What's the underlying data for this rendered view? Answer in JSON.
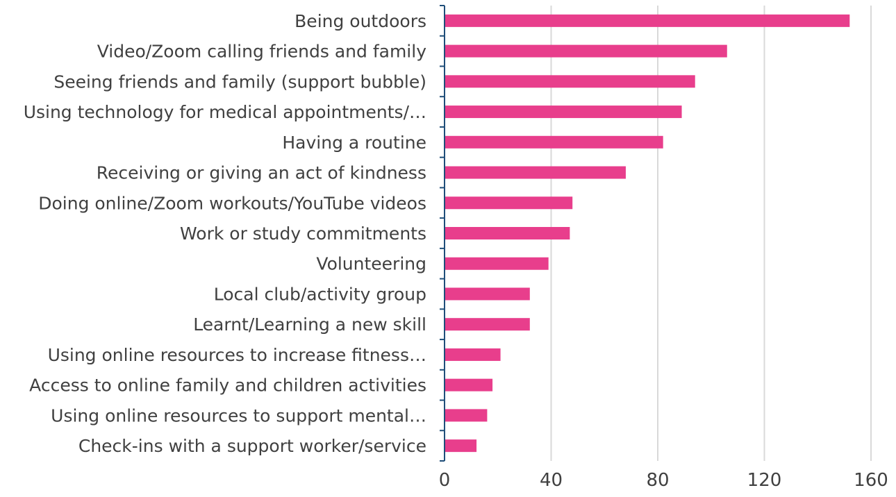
{
  "chart_data": {
    "type": "bar",
    "orientation": "horizontal",
    "title": "",
    "xlabel": "",
    "ylabel": "",
    "xlim": [
      0,
      160
    ],
    "x_ticks": [
      0,
      40,
      80,
      120,
      160
    ],
    "grid": "vertical",
    "legend": "none",
    "categories": [
      "Being outdoors",
      "Video/Zoom calling friends and family",
      "Seeing friends and family (support bubble)",
      "Using technology for medical appointments/…",
      "Having a routine",
      "Receiving or giving an act of kindness",
      "Doing online/Zoom workouts/YouTube videos",
      "Work or study commitments",
      "Volunteering",
      "Local club/activity group",
      "Learnt/Learning a new skill",
      "Using online resources to increase fitness…",
      "Access to online family and children activities",
      "Using online resources to support mental…",
      "Check-ins with a support worker/service"
    ],
    "values": [
      152,
      106,
      94,
      89,
      82,
      68,
      48,
      47,
      39,
      32,
      32,
      21,
      18,
      16,
      12
    ],
    "colors": {
      "bar": "#e83e8c",
      "grid": "#d9d9d9",
      "axis": "#1f4e79",
      "text": "#404040"
    }
  }
}
